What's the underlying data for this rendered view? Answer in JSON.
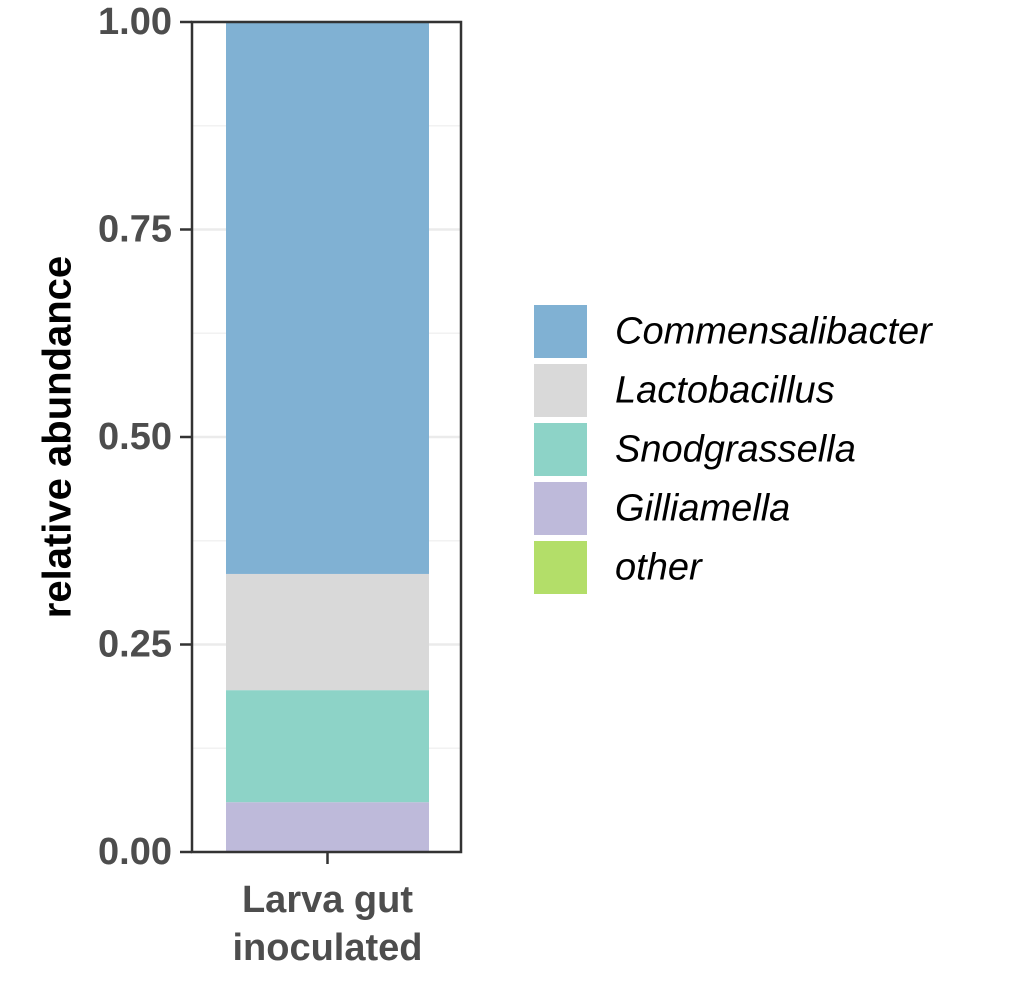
{
  "chart_data": {
    "type": "bar",
    "stacked": true,
    "categories": [
      "Larva gut\ninoculated"
    ],
    "series": [
      {
        "name": "Gilliamella",
        "values": [
          0.06
        ],
        "color": "#bebada"
      },
      {
        "name": "Snodgrassella",
        "values": [
          0.135
        ],
        "color": "#8dd3c7"
      },
      {
        "name": "Lactobacillus",
        "values": [
          0.14
        ],
        "color": "#d9d9d9"
      },
      {
        "name": "Commensalibacter",
        "values": [
          0.665
        ],
        "color": "#80b1d3"
      },
      {
        "name": "other",
        "values": [
          0.0
        ],
        "color": "#b3de69"
      }
    ],
    "legend_order": [
      "Commensalibacter",
      "Lactobacillus",
      "Snodgrassella",
      "Gilliamella",
      "other"
    ],
    "ylabel": "relative abundance",
    "xlabel": "",
    "ylim": [
      0,
      1
    ],
    "yticks": [
      "0.00",
      "0.25",
      "0.50",
      "0.75",
      "1.00"
    ],
    "ytick_values": [
      0,
      0.25,
      0.5,
      0.75,
      1.0
    ],
    "grid": true,
    "legend_position": "right"
  }
}
